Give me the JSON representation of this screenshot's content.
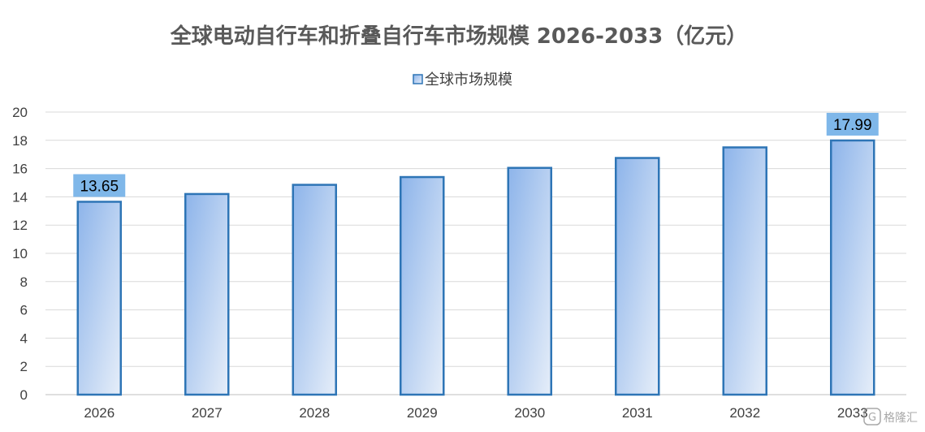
{
  "chart_data": {
    "type": "bar",
    "title": "全球电动自行车和折叠自行车市场规模 2026-2033（亿元）",
    "categories": [
      "2026",
      "2027",
      "2028",
      "2029",
      "2030",
      "2031",
      "2032",
      "2033"
    ],
    "series": [
      {
        "name": "全球市场规模",
        "values": [
          13.65,
          14.2,
          14.85,
          15.4,
          16.05,
          16.75,
          17.5,
          17.99
        ]
      }
    ],
    "data_labels": [
      {
        "index": 0,
        "text": "13.65"
      },
      {
        "index": 7,
        "text": "17.99"
      }
    ],
    "ylim": [
      0,
      20
    ],
    "yticks": [
      "0",
      "2",
      "4",
      "6",
      "8",
      "10",
      "12",
      "14",
      "16",
      "18",
      "20"
    ],
    "grid": true,
    "legend_position": "top-center"
  },
  "colors": {
    "bar_stroke": "#2e75b6",
    "bar_fill_dark": "#8db4ea",
    "bar_fill_light": "#e6eef9",
    "label_box": "#7fb7e9",
    "grid": "#d9d9d9",
    "axis": "#bfbfbf"
  },
  "watermark": {
    "icon": "gelonghui-logo-icon",
    "text": "格隆汇"
  }
}
